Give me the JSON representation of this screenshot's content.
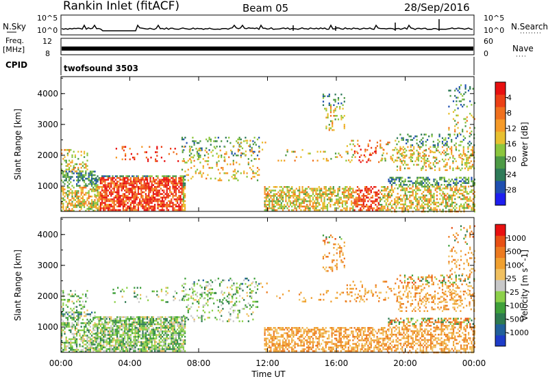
{
  "header": {
    "station": "Rankin Inlet (fitACF)",
    "beam": "Beam 05",
    "date": "28/Sep/2016"
  },
  "top_panels": {
    "nsky_label": "N.Sky",
    "nsky_ticks": [
      "10^5",
      "10^0"
    ],
    "nsky_right_ticks": [
      "10^5",
      "10^0"
    ],
    "nsearch_label": "N.Search",
    "freq_label": "Freq.",
    "freq_unit": "[MHz]",
    "freq_ticks": [
      "12",
      "8"
    ],
    "nave_ticks": [
      "60",
      "0"
    ],
    "nave_label": "Nave",
    "cpid_label": "CPID",
    "cpid_value": "twofsound 3503"
  },
  "chart_data": [
    {
      "type": "heatmap",
      "ylabel": "Slant Range [km]",
      "xlabel": "Time UT",
      "x_ticks": [
        "00:00",
        "04:00",
        "08:00",
        "12:00",
        "16:00",
        "20:00",
        "00:00"
      ],
      "x_range_hours": [
        0,
        24
      ],
      "y_ticks": [
        1000,
        2000,
        3000,
        4000
      ],
      "ylim": [
        180,
        4550
      ],
      "colorbar": {
        "label": "Power [dB]",
        "ticks": [
          "4",
          "8",
          "12",
          "16",
          "20",
          "24",
          "28"
        ],
        "colors": [
          "#1e1ef0",
          "#1f4fb0",
          "#2e7a58",
          "#4d9a45",
          "#8cc63e",
          "#e8c030",
          "#f59a28",
          "#f0701e",
          "#ec4016",
          "#e81010"
        ]
      }
    },
    {
      "type": "heatmap",
      "ylabel": "Slant Range [km]",
      "xlabel": "Time UT",
      "x_ticks": [
        "00:00",
        "04:00",
        "08:00",
        "12:00",
        "16:00",
        "20:00",
        "00:00"
      ],
      "x_range_hours": [
        0,
        24
      ],
      "y_ticks": [
        1000,
        2000,
        3000,
        4000
      ],
      "ylim": [
        180,
        4550
      ],
      "colorbar": {
        "label": "Velocity [m s^-1]",
        "ticks": [
          "1000",
          "500",
          "100",
          "25",
          "-25",
          "-100",
          "-500",
          "-1000"
        ],
        "colors": [
          "#1e3cc8",
          "#22609a",
          "#2e7a50",
          "#3fa03a",
          "#8cd04a",
          "#c8c8c8",
          "#f0c060",
          "#f0a030",
          "#ec7a20",
          "#e85014",
          "#e81010"
        ]
      }
    }
  ]
}
